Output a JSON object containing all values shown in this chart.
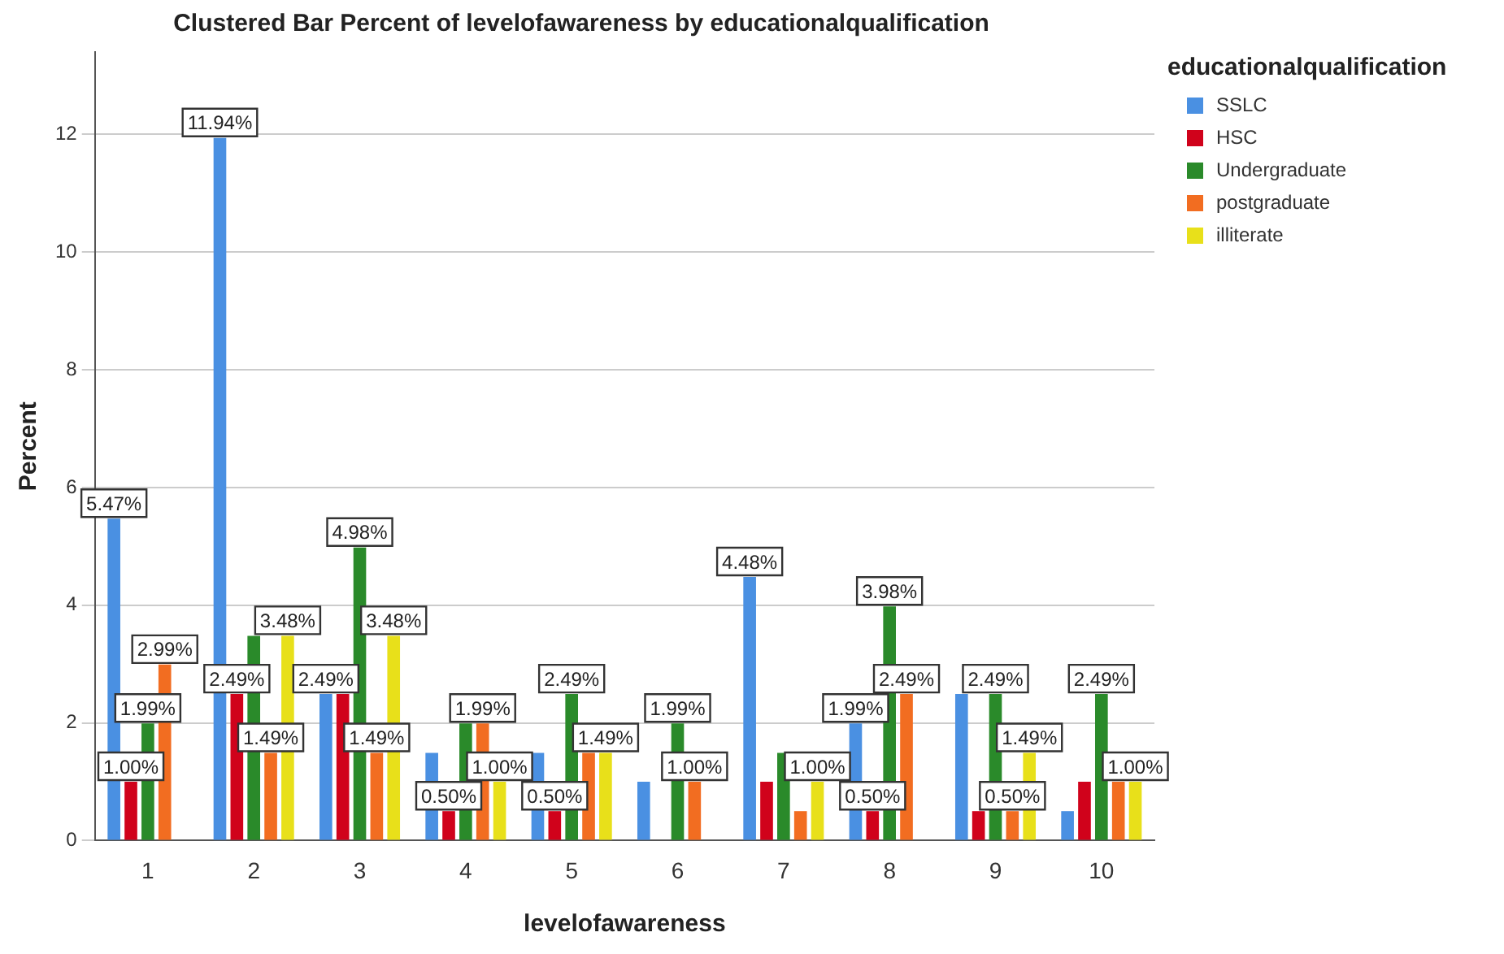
{
  "chart_data": {
    "type": "bar",
    "title": "Clustered Bar Percent of levelofawareness by educationalqualification",
    "xlabel": "levelofawareness",
    "ylabel": "Percent",
    "legend_title": "educationalqualification",
    "categories": [
      "1",
      "2",
      "3",
      "4",
      "5",
      "6",
      "7",
      "8",
      "9",
      "10"
    ],
    "series": [
      {
        "name": "SSLC",
        "color": "#4a90e2",
        "values": [
          5.47,
          11.94,
          2.49,
          1.49,
          1.49,
          1.0,
          4.48,
          1.99,
          2.49,
          0.5
        ],
        "value_labels": [
          "5.47%",
          "11.94%",
          "2.49%",
          null,
          null,
          null,
          "4.48%",
          "1.99%",
          null,
          null
        ]
      },
      {
        "name": "HSC",
        "color": "#d0021b",
        "values": [
          1.0,
          2.49,
          2.49,
          0.5,
          0.5,
          null,
          1.0,
          0.5,
          0.5,
          1.0
        ],
        "value_labels": [
          "1.00%",
          "2.49%",
          null,
          "0.50%",
          "0.50%",
          null,
          null,
          "0.50%",
          null,
          null
        ]
      },
      {
        "name": "Undergraduate",
        "color": "#2a8a2a",
        "values": [
          1.99,
          3.48,
          4.98,
          1.99,
          2.49,
          1.99,
          1.49,
          3.98,
          2.49,
          2.49
        ],
        "value_labels": [
          "1.99%",
          null,
          "4.98%",
          null,
          "2.49%",
          "1.99%",
          null,
          "3.98%",
          "2.49%",
          "2.49%"
        ]
      },
      {
        "name": "postgraduate",
        "color": "#f26d21",
        "values": [
          2.99,
          1.49,
          1.49,
          1.99,
          1.49,
          1.0,
          0.5,
          2.49,
          0.5,
          1.0
        ],
        "value_labels": [
          "2.99%",
          "1.49%",
          "1.49%",
          "1.99%",
          null,
          "1.00%",
          null,
          "2.49%",
          "0.50%",
          null
        ]
      },
      {
        "name": "illiterate",
        "color": "#e8e01a",
        "values": [
          null,
          3.48,
          3.48,
          1.0,
          1.49,
          null,
          1.0,
          null,
          1.49,
          1.0
        ],
        "value_labels": [
          null,
          "3.48%",
          "3.48%",
          "1.00%",
          "1.49%",
          null,
          "1.00%",
          null,
          "1.49%",
          "1.00%"
        ]
      }
    ],
    "ylim": [
      0,
      13.4
    ],
    "yticks": [
      0,
      2,
      4,
      6,
      8,
      10,
      12
    ],
    "grid": "y",
    "legend": "top right"
  }
}
